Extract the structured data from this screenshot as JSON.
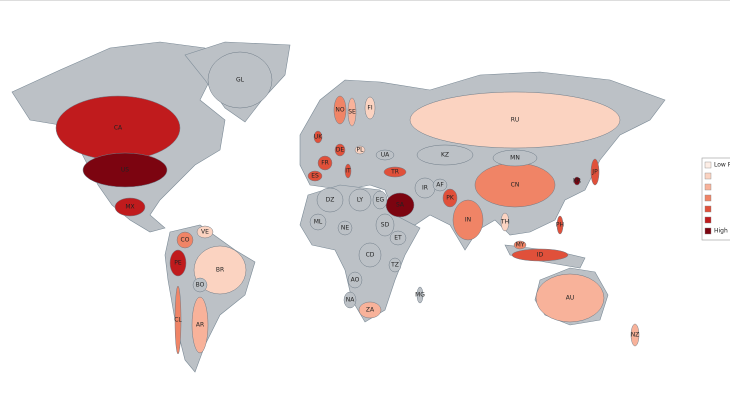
{
  "map": {
    "legend": {
      "low": "Low P",
      "high": "High",
      "colors": [
        "#fdeee6",
        "#fbd3c1",
        "#f8b29a",
        "#f08466",
        "#e0503a",
        "#c01b1d",
        "#7c0410"
      ],
      "no_data_color": "#bcc1c6"
    },
    "countries": [
      {
        "code": "CA",
        "level": 5
      },
      {
        "code": "US",
        "level": 6
      },
      {
        "code": "MX",
        "level": 5
      },
      {
        "code": "GL",
        "level": 0
      },
      {
        "code": "BR",
        "level": 1
      },
      {
        "code": "AR",
        "level": 2
      },
      {
        "code": "CL",
        "level": 3
      },
      {
        "code": "CO",
        "level": 3
      },
      {
        "code": "PE",
        "level": 5
      },
      {
        "code": "BO",
        "level": 0
      },
      {
        "code": "RU",
        "level": 1
      },
      {
        "code": "CN",
        "level": 3
      },
      {
        "code": "IN",
        "level": 3
      },
      {
        "code": "AU",
        "level": 2
      },
      {
        "code": "KZ",
        "level": 0
      },
      {
        "code": "MN",
        "level": 0
      },
      {
        "code": "SA",
        "level": 6
      },
      {
        "code": "IR",
        "level": 0
      },
      {
        "code": "TR",
        "level": 4
      },
      {
        "code": "FR",
        "level": 4
      },
      {
        "code": "DE",
        "level": 4
      },
      {
        "code": "ES",
        "level": 4
      },
      {
        "code": "IT",
        "level": 4
      },
      {
        "code": "UK",
        "level": 4
      },
      {
        "code": "NO",
        "level": 3
      },
      {
        "code": "SE",
        "level": 2
      },
      {
        "code": "FI",
        "level": 1
      },
      {
        "code": "PL",
        "level": 1
      },
      {
        "code": "UA",
        "level": 0
      },
      {
        "code": "DZ",
        "level": 0
      },
      {
        "code": "LY",
        "level": 0
      },
      {
        "code": "EG",
        "level": 0
      },
      {
        "code": "SD",
        "level": 0
      },
      {
        "code": "CD",
        "level": 0
      },
      {
        "code": "ZA",
        "level": 2
      },
      {
        "code": "NE",
        "level": 0
      },
      {
        "code": "ET",
        "level": 0
      },
      {
        "code": "ID",
        "level": 4
      },
      {
        "code": "JP",
        "level": 4
      },
      {
        "code": "PH",
        "level": 4
      },
      {
        "code": "TH",
        "level": 1
      },
      {
        "code": "KR",
        "level": 6
      },
      {
        "code": "PK",
        "level": 4
      },
      {
        "code": "NZ",
        "level": 2
      },
      {
        "code": "ML",
        "level": 0
      },
      {
        "code": "AO",
        "level": 0
      },
      {
        "code": "NA",
        "level": 0
      },
      {
        "code": "TZ",
        "level": 0
      },
      {
        "code": "AF",
        "level": 0
      },
      {
        "code": "MY",
        "level": 3
      },
      {
        "code": "VE",
        "level": 1
      },
      {
        "code": "MG",
        "level": 0
      }
    ]
  }
}
